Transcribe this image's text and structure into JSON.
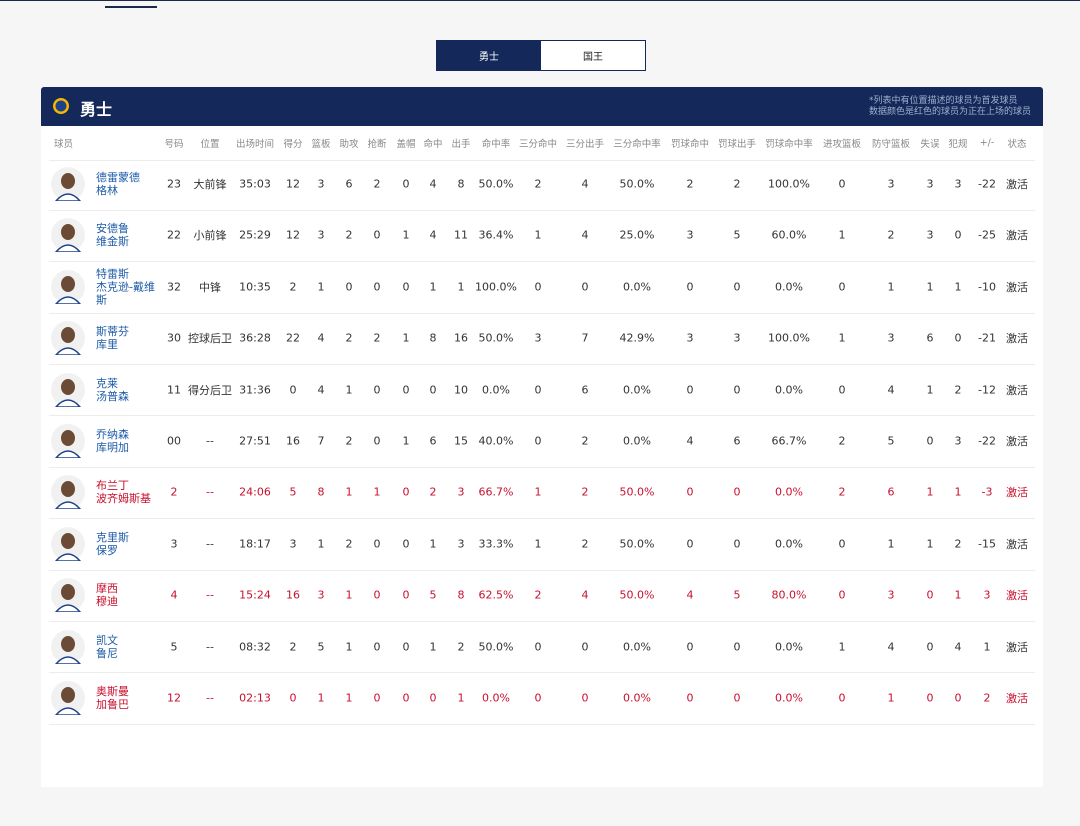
{
  "tabs": {
    "items": [
      "勇士",
      "国王"
    ],
    "active": 0
  },
  "panel": {
    "title": "勇士",
    "note": [
      "*列表中有位置描述的球员为首发球员",
      "数据颜色是红色的球员为正在上场的球员"
    ]
  },
  "table": {
    "columns": [
      "球员",
      "号码",
      "位置",
      "出场时间",
      "得分",
      "篮板",
      "助攻",
      "抢断",
      "盖帽",
      "命中",
      "出手",
      "命中率",
      "三分命中",
      "三分出手",
      "三分命中率",
      "罚球命中",
      "罚球出手",
      "罚球命中率",
      "进攻篮板",
      "防守篮板",
      "失误",
      "犯规",
      "+/-",
      "状态"
    ],
    "rows": [
      {
        "player": [
          "德雷蒙德",
          "格林"
        ],
        "on_court": false,
        "cells": [
          "23",
          "大前锋",
          "35:03",
          "12",
          "3",
          "6",
          "2",
          "0",
          "4",
          "8",
          "50.0%",
          "2",
          "4",
          "50.0%",
          "2",
          "2",
          "100.0%",
          "0",
          "3",
          "3",
          "3",
          "-22",
          "激活"
        ]
      },
      {
        "player": [
          "安德鲁",
          "维金斯"
        ],
        "on_court": false,
        "cells": [
          "22",
          "小前锋",
          "25:29",
          "12",
          "3",
          "2",
          "0",
          "1",
          "4",
          "11",
          "36.4%",
          "1",
          "4",
          "25.0%",
          "3",
          "5",
          "60.0%",
          "1",
          "2",
          "3",
          "0",
          "-25",
          "激活"
        ]
      },
      {
        "player": [
          "特雷斯",
          "杰克逊-戴维",
          "斯"
        ],
        "on_court": false,
        "cells": [
          "32",
          "中锋",
          "10:35",
          "2",
          "1",
          "0",
          "0",
          "0",
          "1",
          "1",
          "100.0%",
          "0",
          "0",
          "0.0%",
          "0",
          "0",
          "0.0%",
          "0",
          "1",
          "1",
          "1",
          "-10",
          "激活"
        ]
      },
      {
        "player": [
          "斯蒂芬",
          "库里"
        ],
        "on_court": false,
        "cells": [
          "30",
          "控球后卫",
          "36:28",
          "22",
          "4",
          "2",
          "2",
          "1",
          "8",
          "16",
          "50.0%",
          "3",
          "7",
          "42.9%",
          "3",
          "3",
          "100.0%",
          "1",
          "3",
          "6",
          "0",
          "-21",
          "激活"
        ]
      },
      {
        "player": [
          "克莱",
          "汤普森"
        ],
        "on_court": false,
        "cells": [
          "11",
          "得分后卫",
          "31:36",
          "0",
          "4",
          "1",
          "0",
          "0",
          "0",
          "10",
          "0.0%",
          "0",
          "6",
          "0.0%",
          "0",
          "0",
          "0.0%",
          "0",
          "4",
          "1",
          "2",
          "-12",
          "激活"
        ]
      },
      {
        "player": [
          "乔纳森",
          "库明加"
        ],
        "on_court": false,
        "cells": [
          "00",
          "--",
          "27:51",
          "16",
          "7",
          "2",
          "0",
          "1",
          "6",
          "15",
          "40.0%",
          "0",
          "2",
          "0.0%",
          "4",
          "6",
          "66.7%",
          "2",
          "5",
          "0",
          "3",
          "-22",
          "激活"
        ]
      },
      {
        "player": [
          "布兰丁",
          "波齐姆斯基"
        ],
        "on_court": true,
        "cells": [
          "2",
          "--",
          "24:06",
          "5",
          "8",
          "1",
          "1",
          "0",
          "2",
          "3",
          "66.7%",
          "1",
          "2",
          "50.0%",
          "0",
          "0",
          "0.0%",
          "2",
          "6",
          "1",
          "1",
          "-3",
          "激活"
        ]
      },
      {
        "player": [
          "克里斯",
          "保罗"
        ],
        "on_court": false,
        "cells": [
          "3",
          "--",
          "18:17",
          "3",
          "1",
          "2",
          "0",
          "0",
          "1",
          "3",
          "33.3%",
          "1",
          "2",
          "50.0%",
          "0",
          "0",
          "0.0%",
          "0",
          "1",
          "1",
          "2",
          "-15",
          "激活"
        ]
      },
      {
        "player": [
          "摩西",
          "穆迪"
        ],
        "on_court": true,
        "cells": [
          "4",
          "--",
          "15:24",
          "16",
          "3",
          "1",
          "0",
          "0",
          "5",
          "8",
          "62.5%",
          "2",
          "4",
          "50.0%",
          "4",
          "5",
          "80.0%",
          "0",
          "3",
          "0",
          "1",
          "3",
          "激活"
        ]
      },
      {
        "player": [
          "凯文",
          "鲁尼"
        ],
        "on_court": false,
        "cells": [
          "5",
          "--",
          "08:32",
          "2",
          "5",
          "1",
          "0",
          "0",
          "1",
          "2",
          "50.0%",
          "0",
          "0",
          "0.0%",
          "0",
          "0",
          "0.0%",
          "1",
          "4",
          "0",
          "4",
          "1",
          "激活"
        ]
      },
      {
        "player": [
          "奥斯曼",
          "加鲁巴"
        ],
        "on_court": true,
        "cells": [
          "12",
          "--",
          "02:13",
          "0",
          "1",
          "1",
          "0",
          "0",
          "0",
          "1",
          "0.0%",
          "0",
          "0",
          "0.0%",
          "0",
          "0",
          "0.0%",
          "0",
          "1",
          "0",
          "0",
          "2",
          "激活"
        ]
      }
    ]
  }
}
